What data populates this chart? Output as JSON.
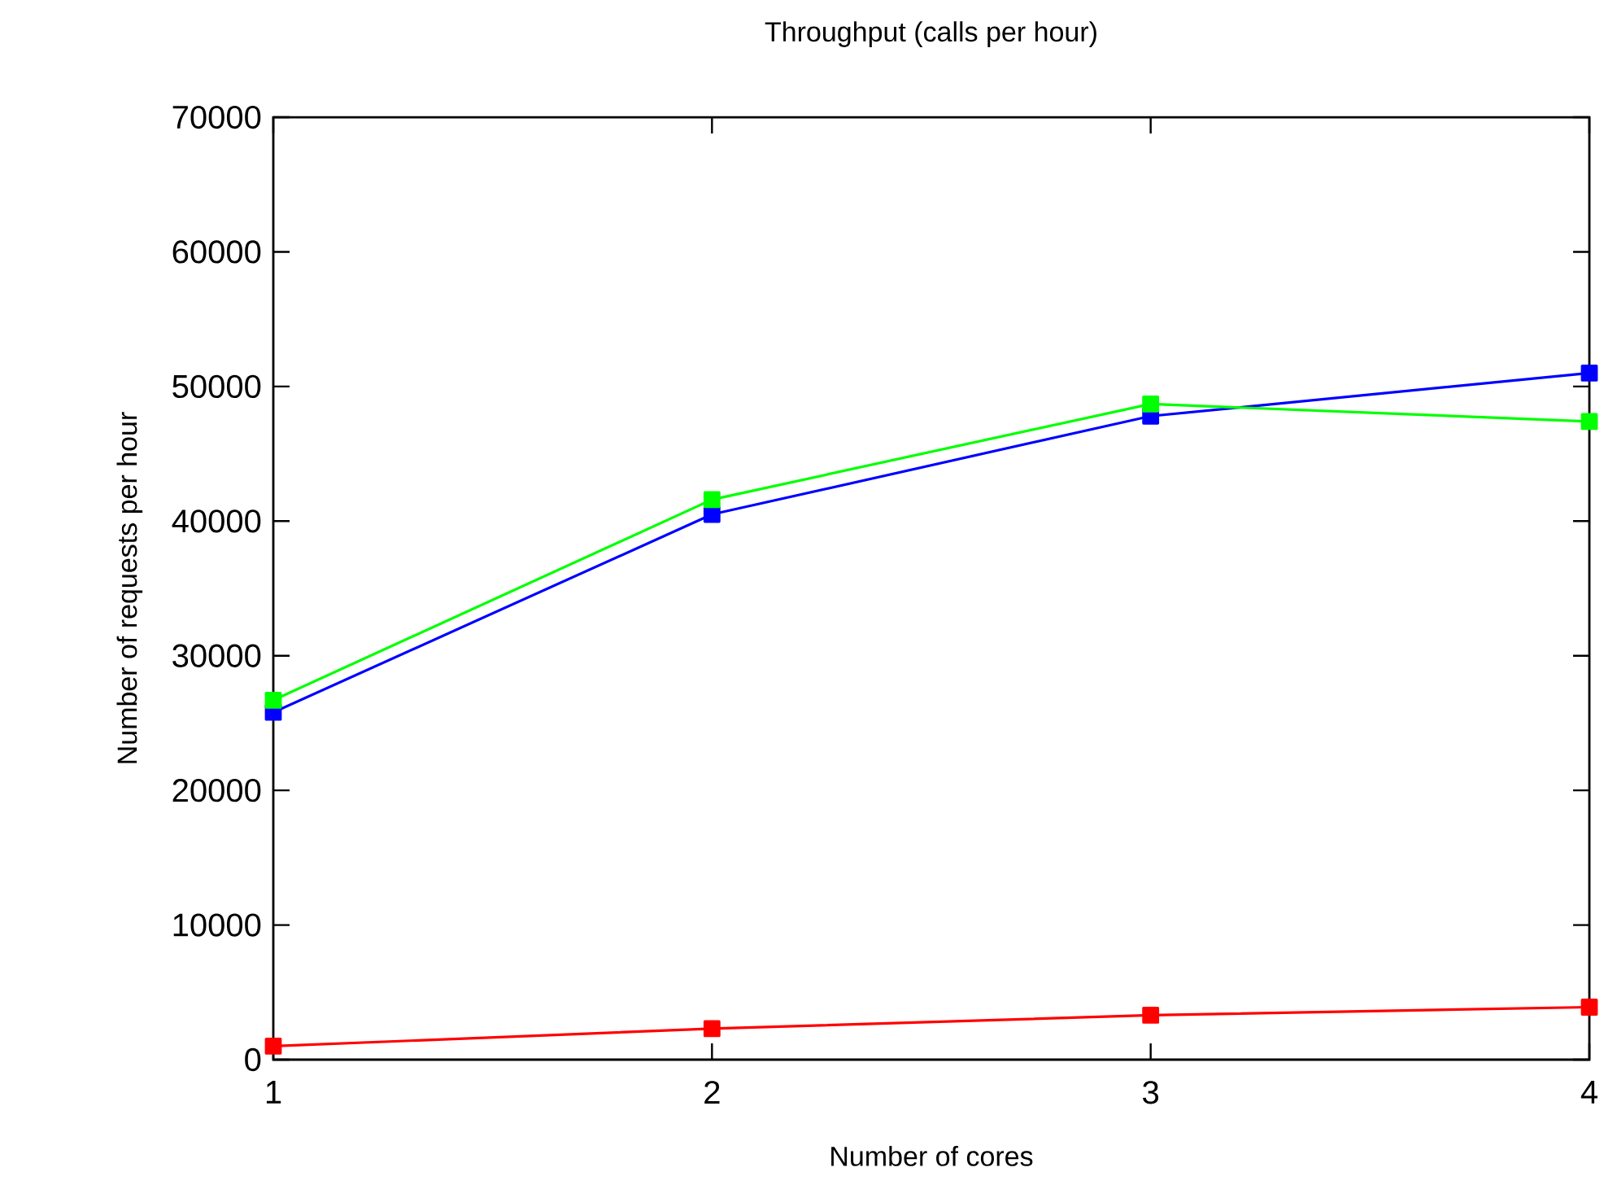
{
  "chart_data": {
    "type": "line",
    "title": "Throughput (calls per hour)",
    "xlabel": "Number of cores",
    "ylabel": "Number of requests per hour",
    "x": [
      1,
      2,
      3,
      4
    ],
    "series": [
      {
        "color": "#0000ff",
        "values": [
          25800,
          40500,
          47800,
          51000
        ]
      },
      {
        "color": "#00ff00",
        "values": [
          26700,
          41600,
          48700,
          47400
        ]
      },
      {
        "color": "#ff0000",
        "values": [
          1000,
          2300,
          3300,
          3900
        ]
      }
    ],
    "xlim": [
      1,
      4
    ],
    "ylim": [
      0,
      70000
    ],
    "xticks": [
      1,
      2,
      3,
      4
    ],
    "yticks": [
      0,
      10000,
      20000,
      30000,
      40000,
      50000,
      60000,
      70000
    ],
    "grid": false,
    "marker": "square",
    "line_style": "solid"
  }
}
